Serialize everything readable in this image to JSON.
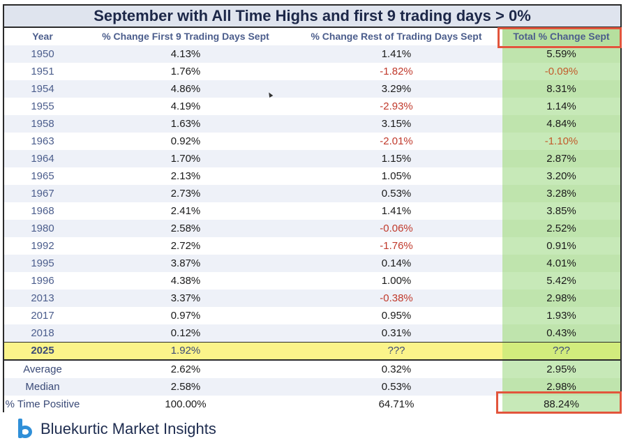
{
  "title": "September with All Time Highs and first 9 trading days > 0%",
  "headers": {
    "year": "Year",
    "first": "% Change First 9 Trading Days Sept",
    "rest": "% Change Rest of Trading Days Sept",
    "total": "Total % Change Sept"
  },
  "rows": [
    {
      "year": "1950",
      "first": "4.13%",
      "rest": "1.41%",
      "total": "5.59%"
    },
    {
      "year": "1951",
      "first": "1.76%",
      "rest": "-1.82%",
      "total": "-0.09%"
    },
    {
      "year": "1954",
      "first": "4.86%",
      "rest": "3.29%",
      "total": "8.31%"
    },
    {
      "year": "1955",
      "first": "4.19%",
      "rest": "-2.93%",
      "total": "1.14%"
    },
    {
      "year": "1958",
      "first": "1.63%",
      "rest": "3.15%",
      "total": "4.84%"
    },
    {
      "year": "1963",
      "first": "0.92%",
      "rest": "-2.01%",
      "total": "-1.10%"
    },
    {
      "year": "1964",
      "first": "1.70%",
      "rest": "1.15%",
      "total": "2.87%"
    },
    {
      "year": "1965",
      "first": "2.13%",
      "rest": "1.05%",
      "total": "3.20%"
    },
    {
      "year": "1967",
      "first": "2.73%",
      "rest": "0.53%",
      "total": "3.28%"
    },
    {
      "year": "1968",
      "first": "2.41%",
      "rest": "1.41%",
      "total": "3.85%"
    },
    {
      "year": "1980",
      "first": "2.58%",
      "rest": "-0.06%",
      "total": "2.52%"
    },
    {
      "year": "1992",
      "first": "2.72%",
      "rest": "-1.76%",
      "total": "0.91%"
    },
    {
      "year": "1995",
      "first": "3.87%",
      "rest": "0.14%",
      "total": "4.01%"
    },
    {
      "year": "1996",
      "first": "4.38%",
      "rest": "1.00%",
      "total": "5.42%"
    },
    {
      "year": "2013",
      "first": "3.37%",
      "rest": "-0.38%",
      "total": "2.98%"
    },
    {
      "year": "2017",
      "first": "0.97%",
      "rest": "0.95%",
      "total": "1.93%"
    },
    {
      "year": "2018",
      "first": "0.12%",
      "rest": "0.31%",
      "total": "0.43%"
    }
  ],
  "current": {
    "year": "2025",
    "first": "1.92%",
    "rest": "???",
    "total": "???"
  },
  "stats": [
    {
      "label": "Average",
      "first": "2.62%",
      "rest": "0.32%",
      "total": "2.95%"
    },
    {
      "label": "Median",
      "first": "2.58%",
      "rest": "0.53%",
      "total": "2.98%"
    },
    {
      "label": "% Time Positive",
      "first": "100.00%",
      "rest": "64.71%",
      "total": "88.24%"
    }
  ],
  "brand": "Bluekurtic Market Insights",
  "colors": {
    "negative": "#c0392b",
    "highlight_box": "#e2553c",
    "current_row": "#fbf48a",
    "total_column": "#c7e9b8",
    "logo": "#2f8fd8"
  }
}
